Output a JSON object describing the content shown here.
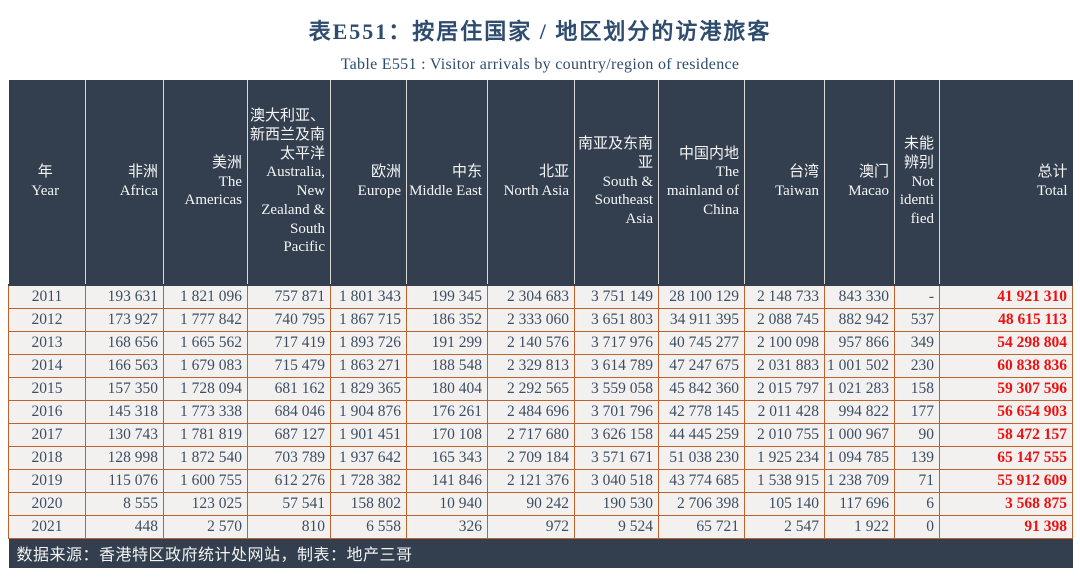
{
  "title": {
    "zh": "表E551：按居住国家 / 地区划分的访港旅客",
    "en": "Table E551 : Visitor arrivals by country/region of residence"
  },
  "table": {
    "columns": [
      {
        "zh": "年",
        "en": "Year"
      },
      {
        "zh": "非洲",
        "en": "Africa"
      },
      {
        "zh": "美洲",
        "en": "The Americas"
      },
      {
        "zh": "澳大利亚、新西兰及南太平洋",
        "en": "Australia, New Zealand & South Pacific"
      },
      {
        "zh": "欧洲",
        "en": "Europe"
      },
      {
        "zh": "中东",
        "en": "Middle East"
      },
      {
        "zh": "北亚",
        "en": "North Asia"
      },
      {
        "zh": "南亚及东南亚",
        "en": "South & Southeast Asia"
      },
      {
        "zh": "中国内地",
        "en": "The mainland of China"
      },
      {
        "zh": "台湾",
        "en": "Taiwan"
      },
      {
        "zh": "澳门",
        "en": "Macao"
      },
      {
        "zh": "未能辨别",
        "en": "Not identified"
      },
      {
        "zh": "总计",
        "en": "Total"
      }
    ],
    "rows": [
      {
        "year": "2011",
        "values": [
          "193 631",
          "1 821 096",
          "757 871",
          "1 801 343",
          "199 345",
          "2 304 683",
          "3 751 149",
          "28 100 129",
          "2 148 733",
          "843 330",
          "-",
          "41 921 310"
        ]
      },
      {
        "year": "2012",
        "values": [
          "173 927",
          "1 777 842",
          "740 795",
          "1 867 715",
          "186 352",
          "2 333 060",
          "3 651 803",
          "34 911 395",
          "2 088 745",
          "882 942",
          "537",
          "48 615 113"
        ]
      },
      {
        "year": "2013",
        "values": [
          "168 656",
          "1 665 562",
          "717 419",
          "1 893 726",
          "191 299",
          "2 140 576",
          "3 717 976",
          "40 745 277",
          "2 100 098",
          "957 866",
          "349",
          "54 298 804"
        ]
      },
      {
        "year": "2014",
        "values": [
          "166 563",
          "1 679 083",
          "715 479",
          "1 863 271",
          "188 548",
          "2 329 813",
          "3 614 789",
          "47 247 675",
          "2 031 883",
          "1 001 502",
          "230",
          "60 838 836"
        ]
      },
      {
        "year": "2015",
        "values": [
          "157 350",
          "1 728 094",
          "681 162",
          "1 829 365",
          "180 404",
          "2 292 565",
          "3 559 058",
          "45 842 360",
          "2 015 797",
          "1 021 283",
          "158",
          "59 307 596"
        ]
      },
      {
        "year": "2016",
        "values": [
          "145 318",
          "1 773 338",
          "684 046",
          "1 904 876",
          "176 261",
          "2 484 696",
          "3 701 796",
          "42 778 145",
          "2 011 428",
          "994 822",
          "177",
          "56 654 903"
        ]
      },
      {
        "year": "2017",
        "values": [
          "130 743",
          "1 781 819",
          "687 127",
          "1 901 451",
          "170 108",
          "2 717 680",
          "3 626 158",
          "44 445 259",
          "2 010 755",
          "1 000 967",
          "90",
          "58 472 157"
        ]
      },
      {
        "year": "2018",
        "values": [
          "128 998",
          "1 872 540",
          "703 789",
          "1 937 642",
          "165 343",
          "2 709 184",
          "3 571 671",
          "51 038 230",
          "1 925 234",
          "1 094 785",
          "139",
          "65 147 555"
        ]
      },
      {
        "year": "2019",
        "values": [
          "115 076",
          "1 600 755",
          "612 276",
          "1 728 382",
          "141 846",
          "2 121 376",
          "3 040 518",
          "43 774 685",
          "1 538 915",
          "1 238 709",
          "71",
          "55 912 609"
        ]
      },
      {
        "year": "2020",
        "values": [
          "8 555",
          "123 025",
          "57 541",
          "158 802",
          "10 940",
          "90 242",
          "190 530",
          "2 706 398",
          "105 140",
          "117 696",
          "6",
          "3 568 875"
        ]
      },
      {
        "year": "2021",
        "values": [
          "448",
          "2 570",
          "810",
          "6 558",
          "326",
          "972",
          "9 524",
          "65 721",
          "2 547",
          "1 922",
          "0",
          "91 398"
        ]
      }
    ]
  },
  "footer": {
    "source": "数据来源：香港特区政府统计处网站，制表：地产三哥"
  },
  "colors": {
    "header_bg": "#333f4f",
    "row_bg": "#f2f1ef",
    "row_border": "#c0622e",
    "total_red": "#ed1111",
    "title_navy": "#2e4c6e"
  }
}
